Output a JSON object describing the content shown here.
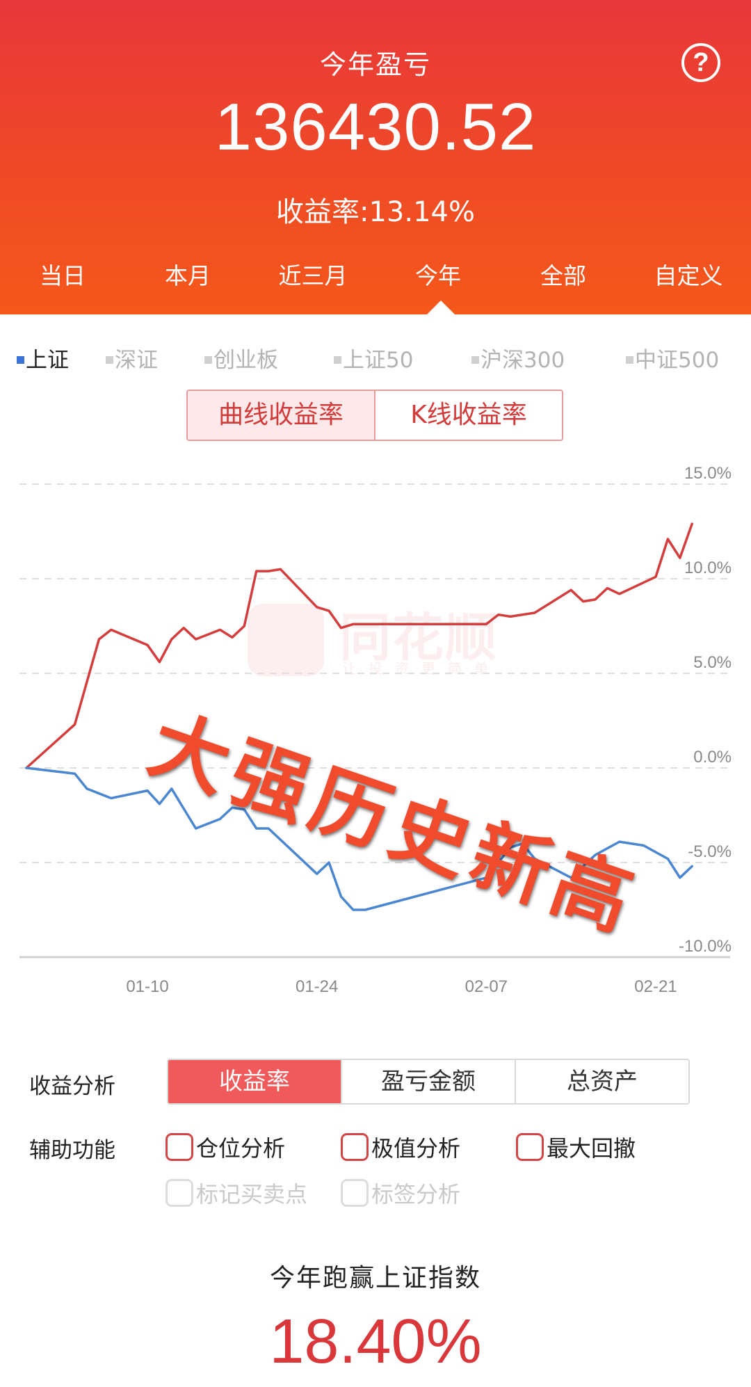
{
  "header": {
    "title": "今年盈亏",
    "amount": "136430.52",
    "rate": "收益率:13.14%",
    "help_glyph": "?"
  },
  "periods": [
    "当日",
    "本月",
    "近三月",
    "今年",
    "全部",
    "自定义"
  ],
  "selected_period": "今年",
  "indexes": [
    "上证",
    "深证",
    "创业板",
    "上证50",
    "沪深300",
    "中证500"
  ],
  "selected_index": "上证",
  "chart_mode": {
    "options": [
      "曲线收益率",
      "K线收益率"
    ],
    "selected": "曲线收益率"
  },
  "watermark": {
    "brand": "同花顺",
    "slogan": "让投资更简单"
  },
  "overlay_caption": "大强历史新高",
  "chart_data": {
    "type": "line",
    "y_tick_labels": [
      "15.0%",
      "10.0%",
      "5.0%",
      "0.0%",
      "-5.0%",
      "-10.0%"
    ],
    "ylim": [
      -10,
      15
    ],
    "x_tick_labels": [
      "01-10",
      "01-24",
      "02-07",
      "02-21"
    ],
    "x_tick_positions": [
      10,
      24,
      38,
      52
    ],
    "xlim": [
      0,
      57
    ],
    "grid": true,
    "colors": {
      "portfolio": "#d53c3c",
      "index": "#4a86d1"
    },
    "series": [
      {
        "x": [
          0,
          4,
          6,
          7,
          10,
          11,
          12,
          13,
          14,
          16,
          17,
          18,
          19,
          20,
          21,
          24,
          25,
          26,
          27,
          38,
          39,
          40,
          42,
          45,
          46,
          47,
          48,
          49,
          52,
          53,
          54,
          55
        ],
        "values": [
          0,
          2.3,
          6.8,
          7.3,
          6.5,
          5.6,
          6.8,
          7.4,
          6.8,
          7.3,
          6.9,
          7.5,
          10.4,
          10.4,
          10.5,
          8.5,
          8.3,
          7.4,
          7.6,
          7.6,
          8.1,
          8.0,
          8.2,
          9.4,
          8.8,
          8.9,
          9.5,
          9.2,
          10.1,
          12.1,
          11.1,
          12.9
        ]
      },
      {
        "x": [
          0,
          4,
          5,
          7,
          10,
          11,
          12,
          14,
          16,
          17,
          18,
          19,
          20,
          24,
          25,
          26,
          27,
          28,
          38,
          40,
          41,
          42,
          45,
          47,
          49,
          51,
          53,
          54,
          55
        ],
        "values": [
          0,
          -0.3,
          -1.1,
          -1.6,
          -1.2,
          -1.9,
          -1.1,
          -3.2,
          -2.7,
          -2.1,
          -2.2,
          -3.2,
          -3.2,
          -5.6,
          -5.0,
          -6.8,
          -7.5,
          -7.5,
          -5.8,
          -4.2,
          -4.0,
          -4.8,
          -5.8,
          -4.6,
          -3.9,
          -4.1,
          -4.8,
          -5.8,
          -5.2
        ]
      }
    ]
  },
  "analysis": {
    "label": "收益分析",
    "options": [
      "收益率",
      "盈亏金额",
      "总资产"
    ],
    "selected": "收益率"
  },
  "aux": {
    "label": "辅助功能",
    "enabled": [
      "仓位分析",
      "极值分析",
      "最大回撤"
    ],
    "disabled": [
      "标记买卖点",
      "标签分析"
    ]
  },
  "beat": {
    "title": "今年跑赢上证指数",
    "value": "18.40%"
  }
}
